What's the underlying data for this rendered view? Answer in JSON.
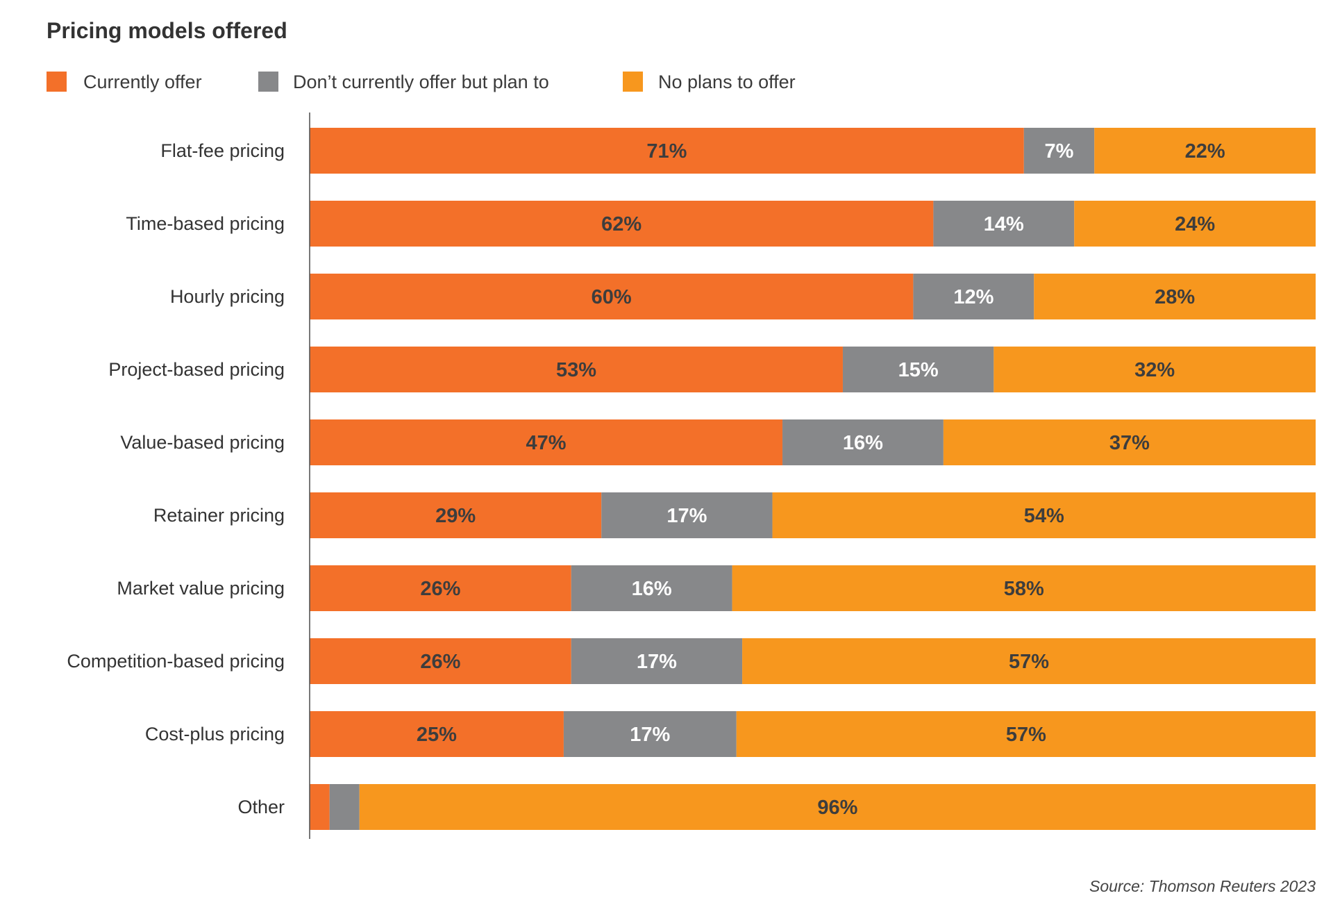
{
  "chart_data": {
    "type": "bar",
    "orientation": "horizontal",
    "stacked": true,
    "title": "Pricing models offered",
    "xlabel": "",
    "ylabel": "",
    "xlim": [
      0,
      100
    ],
    "grid": false,
    "legend_placement": "top-left",
    "categories": [
      "Flat-fee pricing",
      "Time-based pricing",
      "Hourly pricing",
      "Project-based pricing",
      "Value-based pricing",
      "Retainer pricing",
      "Market value pricing",
      "Competition-based pricing",
      "Cost-plus pricing",
      "Other"
    ],
    "series": [
      {
        "name": "Currently offer",
        "color": "#F37029",
        "label_color": "#3D3D3D",
        "values": [
          71,
          62,
          60,
          53,
          47,
          29,
          26,
          26,
          25,
          2
        ],
        "labels": [
          "71%",
          "62%",
          "60%",
          "53%",
          "47%",
          "29%",
          "26%",
          "26%",
          "25%",
          ""
        ]
      },
      {
        "name": "Don’t currently offer but plan to",
        "color": "#87888A",
        "label_color": "#FFFFFF",
        "values": [
          7,
          14,
          12,
          15,
          16,
          17,
          16,
          17,
          17,
          3
        ],
        "labels": [
          "7%",
          "14%",
          "12%",
          "15%",
          "16%",
          "17%",
          "16%",
          "17%",
          "17%",
          ""
        ]
      },
      {
        "name": "No plans to offer",
        "color": "#F7971E",
        "label_color": "#3D3D3D",
        "values": [
          22,
          24,
          28,
          32,
          37,
          54,
          58,
          57,
          57,
          96
        ],
        "labels": [
          "22%",
          "24%",
          "28%",
          "32%",
          "37%",
          "54%",
          "58%",
          "57%",
          "57%",
          "96%"
        ]
      }
    ],
    "source": "Source: Thomson Reuters 2023"
  }
}
